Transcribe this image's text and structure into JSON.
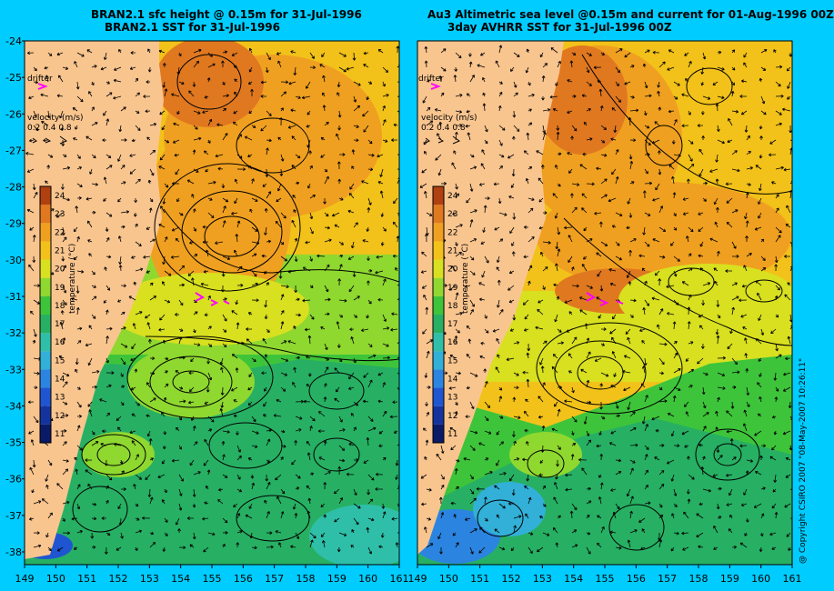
{
  "left_panel": {
    "title_line1": "BRAN2.1 sfc height @ 0.15m for 31-Jul-1996",
    "title_line2": "BRAN2.1 SST for 31-Jul-1996",
    "drifter_label": "drifter",
    "velocity_label": "velocity (m/s)",
    "velocity_scale": "0.2 0.4 0.8"
  },
  "right_panel": {
    "title_line1": "Au3 Altimetric sea level  @0.15m and current for 01-Aug-1996 00Z",
    "title_line2": "3day AVHRR SST for 31-Jul-1996 00Z",
    "drifter_label": "drifter",
    "velocity_label": "velocity (m/s)",
    "velocity_scale": "0.2 0.4 0.8"
  },
  "colorbar": {
    "label": "temperature (°C)",
    "ticks": [
      "11",
      "12",
      "13",
      "14",
      "15",
      "16",
      "17",
      "18",
      "19",
      "20",
      "21",
      "22",
      "23",
      "24"
    ],
    "colors": [
      "#0a1a66",
      "#14339e",
      "#1f55d1",
      "#2b84e0",
      "#32b0d8",
      "#2fbfa8",
      "#27b063",
      "#3ec43a",
      "#8fd830",
      "#d8e020",
      "#f2c21a",
      "#f0a020",
      "#e07820",
      "#b04010"
    ]
  },
  "axes": {
    "lat_labels": [
      "-24",
      "-25",
      "-26",
      "-27",
      "-28",
      "-29",
      "-30",
      "-31",
      "-32",
      "-33",
      "-34",
      "-35",
      "-36",
      "-37",
      "-38"
    ],
    "lon_labels_left": [
      "149",
      "150",
      "151",
      "152",
      "153",
      "154",
      "155",
      "156",
      "157",
      "158",
      "159",
      "160",
      "161"
    ],
    "lon_labels_right": [
      "149",
      "150",
      "151",
      "152",
      "153",
      "154",
      "155",
      "156",
      "157",
      "158",
      "159",
      "160",
      "161"
    ]
  },
  "copyright": "@ Copyright CSIRO 2007 \"08-May-2007 10:26:11\"",
  "colors": {
    "land": "#f9c58f",
    "background": "#00ccff",
    "drifter": "#ff00ff"
  }
}
